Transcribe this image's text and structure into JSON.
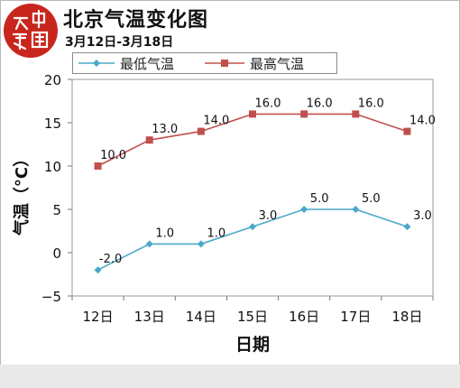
{
  "header": {
    "title": "北京气温变化图",
    "subtitle": "3月12日-3月18日",
    "logo_text": "中国天气"
  },
  "chart_data": {
    "type": "line",
    "xlabel": "日期",
    "ylabel": "气温（°C）",
    "categories": [
      "12日",
      "13日",
      "14日",
      "15日",
      "16日",
      "17日",
      "18日"
    ],
    "ylim": [
      -5,
      20
    ],
    "yticks": [
      "20",
      "15",
      "10",
      "5",
      "0",
      "−5"
    ],
    "ytick_values": [
      20,
      15,
      10,
      5,
      0,
      -5
    ],
    "grid": false,
    "legend_position": "top-left",
    "series": [
      {
        "name": "最低气温",
        "color": "#4aa8c8",
        "marker": "diamond",
        "values": [
          -2.0,
          1.0,
          1.0,
          3.0,
          5.0,
          5.0,
          3.0
        ],
        "labels": [
          "-2.0",
          "1.0",
          "1.0",
          "3.0",
          "5.0",
          "5.0",
          "3.0"
        ]
      },
      {
        "name": "最高气温",
        "color": "#c0504d",
        "marker": "square",
        "values": [
          10.0,
          13.0,
          14.0,
          16.0,
          16.0,
          16.0,
          14.0
        ],
        "labels": [
          "10.0",
          "13.0",
          "14.0",
          "16.0",
          "16.0",
          "16.0",
          "14.0"
        ]
      }
    ]
  }
}
